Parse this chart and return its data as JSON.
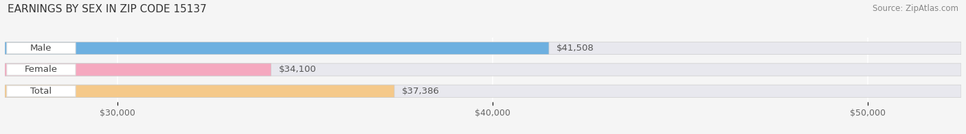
{
  "title": "EARNINGS BY SEX IN ZIP CODE 15137",
  "source": "Source: ZipAtlas.com",
  "categories": [
    "Male",
    "Female",
    "Total"
  ],
  "values": [
    41508,
    34100,
    37386
  ],
  "bar_colors": [
    "#6eb0e0",
    "#f5a8bf",
    "#f5c98a"
  ],
  "value_labels": [
    "$41,508",
    "$34,100",
    "$37,386"
  ],
  "xmin": 27000,
  "xmax": 52500,
  "xticks": [
    30000,
    40000,
    50000
  ],
  "xtick_labels": [
    "$30,000",
    "$40,000",
    "$50,000"
  ],
  "background_color": "#f5f5f5",
  "bar_background_color": "#e8e8ee",
  "title_fontsize": 11,
  "source_fontsize": 8.5,
  "tick_fontsize": 9,
  "label_fontsize": 9.5,
  "value_fontsize": 9.5
}
